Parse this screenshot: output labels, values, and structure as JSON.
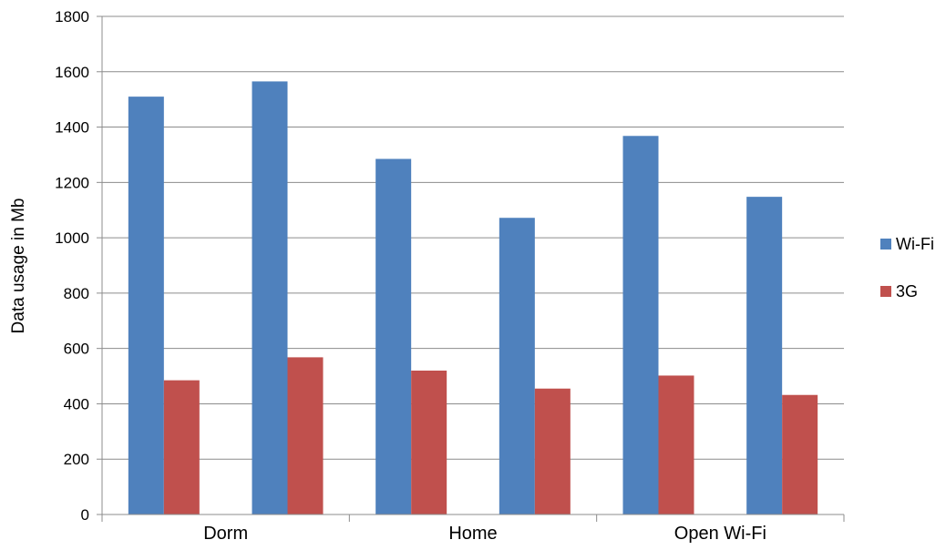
{
  "chart_data": {
    "type": "bar",
    "title": "",
    "xlabel": "",
    "ylabel": "Data usage in Mb",
    "ylim": [
      0,
      1800
    ],
    "yticks": [
      0,
      200,
      400,
      600,
      800,
      1000,
      1200,
      1400,
      1600,
      1800
    ],
    "grid": true,
    "legend_position": "right",
    "groups": [
      "Dorm",
      "Home",
      "Open Wi-Fi"
    ],
    "bars_per_group": 2,
    "series": [
      {
        "name": "Wi-Fi",
        "color": "#4F81BD",
        "values": [
          1510,
          1565,
          1285,
          1072,
          1368,
          1148
        ]
      },
      {
        "name": "3G",
        "color": "#C0504D",
        "values": [
          485,
          568,
          520,
          455,
          502,
          432
        ]
      }
    ]
  }
}
